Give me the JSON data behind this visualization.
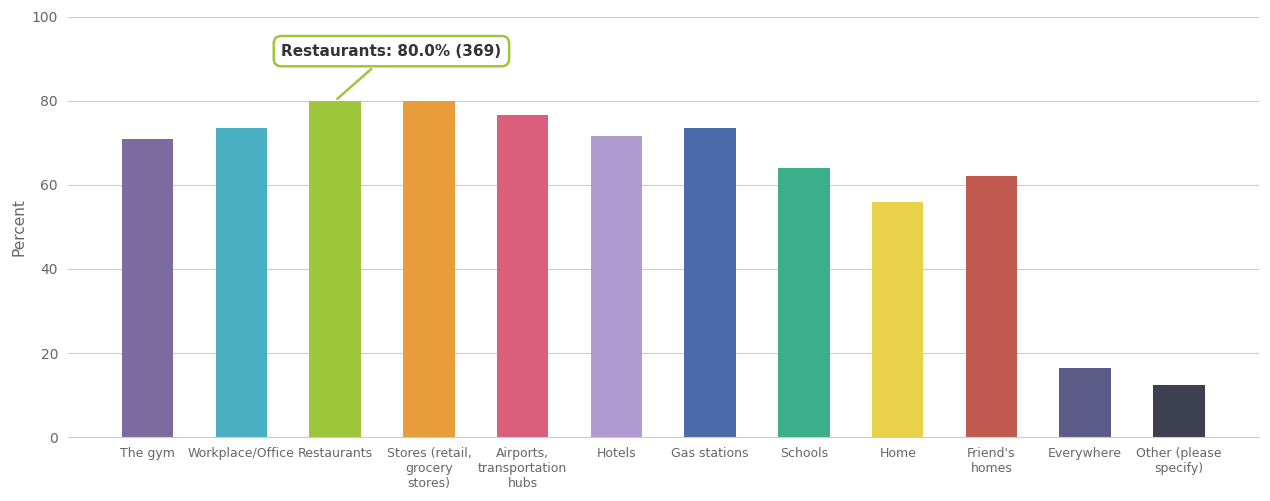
{
  "categories": [
    "The gym",
    "Workplace/Office",
    "Restaurants",
    "Stores (retail,\ngrocery\nstores)",
    "Airports,\ntransportation\nhubs",
    "Hotels",
    "Gas stations",
    "Schools",
    "Home",
    "Friend's\nhomes",
    "Everywhere",
    "Other (please\nspecify)"
  ],
  "values": [
    71.0,
    73.5,
    80.0,
    80.0,
    76.5,
    71.5,
    73.5,
    64.0,
    56.0,
    62.0,
    16.5,
    12.5
  ],
  "colors": [
    "#7B6B9E",
    "#4BAFC4",
    "#9DC63B",
    "#E89C3C",
    "#D95F7C",
    "#B09BD0",
    "#4B6AAA",
    "#3BAF89",
    "#EAD14A",
    "#C05A4E",
    "#5A5C87",
    "#3D4050"
  ],
  "ylabel": "Percent",
  "ylim": [
    0,
    100
  ],
  "yticks": [
    0,
    20,
    40,
    60,
    80,
    100
  ],
  "annotation_text": "Restaurants: 80.0% (369)",
  "annotation_bar_index": 2,
  "background_color": "#ffffff",
  "bar_width": 0.55
}
